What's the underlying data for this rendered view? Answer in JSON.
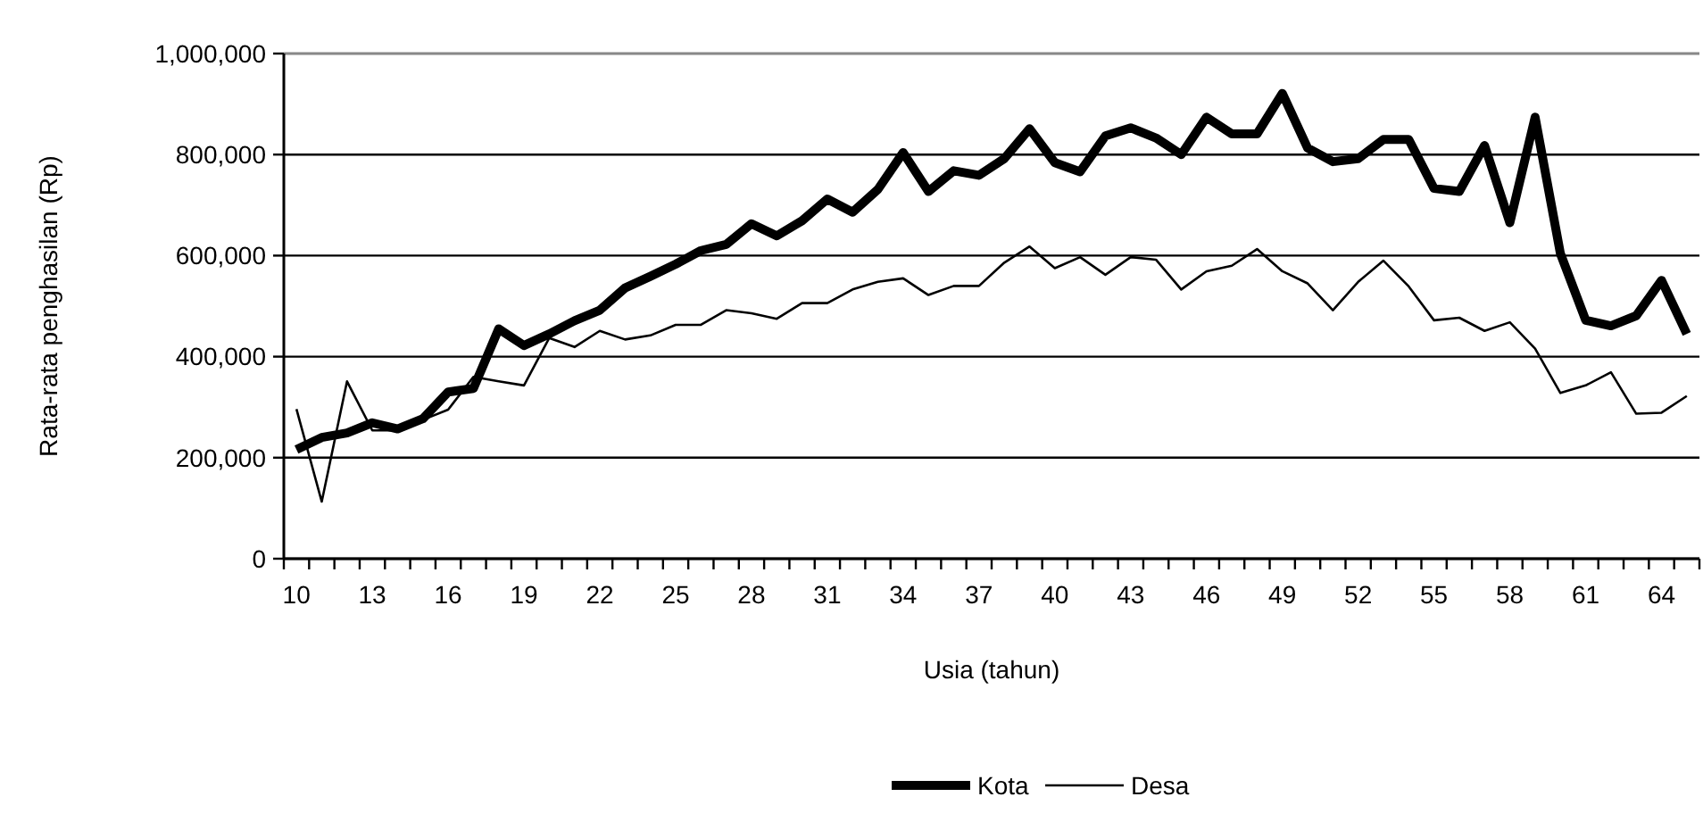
{
  "chart_data": {
    "type": "line",
    "xlabel": "Usia (tahun)",
    "ylabel": "Rata-rata penghasilan (Rp)",
    "categories": [
      "10",
      null,
      null,
      "13",
      null,
      null,
      "16",
      null,
      null,
      "19",
      null,
      null,
      "22",
      null,
      null,
      "25",
      null,
      null,
      "28",
      null,
      null,
      "31",
      null,
      null,
      "34",
      null,
      null,
      "37",
      null,
      null,
      "40",
      null,
      null,
      "43",
      null,
      null,
      "46",
      null,
      null,
      "49",
      null,
      null,
      "52",
      null,
      null,
      "55",
      null,
      null,
      "58",
      null,
      null,
      "61",
      null,
      null,
      "64",
      null
    ],
    "series": [
      {
        "name": "Kota",
        "color": "#000000",
        "values": [
          216000,
          240000,
          249000,
          269000,
          257000,
          277000,
          330000,
          337000,
          455000,
          422000,
          445000,
          471000,
          492000,
          536000,
          559000,
          583000,
          610000,
          622000,
          663000,
          639000,
          669000,
          712000,
          686000,
          731000,
          804000,
          727000,
          768000,
          759000,
          792000,
          851000,
          784000,
          766000,
          837000,
          853000,
          833000,
          800000,
          874000,
          841000,
          841000,
          921000,
          813000,
          786000,
          792000,
          830000,
          830000,
          733000,
          727000,
          818000,
          665000,
          874000,
          604000,
          472000,
          461000,
          481000,
          551000,
          445000
        ]
      },
      {
        "name": "Desa",
        "color": "#000000",
        "values": [
          296000,
          113000,
          351000,
          254000,
          254000,
          275000,
          295000,
          360000,
          351000,
          343000,
          437000,
          419000,
          451000,
          434000,
          442000,
          463000,
          463000,
          492000,
          486000,
          475000,
          506000,
          506000,
          533000,
          548000,
          555000,
          522000,
          540000,
          540000,
          586000,
          618000,
          575000,
          597000,
          562000,
          597000,
          592000,
          533000,
          569000,
          580000,
          613000,
          569000,
          545000,
          492000,
          548000,
          590000,
          539000,
          472000,
          477000,
          451000,
          468000,
          416000,
          328000,
          343000,
          369000,
          287000,
          289000,
          322000
        ]
      }
    ],
    "ylim": [
      0,
      1000000
    ],
    "yticks": [
      {
        "value": 0,
        "label": "0"
      },
      {
        "value": 200000,
        "label": "200,000"
      },
      {
        "value": 400000,
        "label": "400,000"
      },
      {
        "value": 600000,
        "label": "600,000"
      },
      {
        "value": 800000,
        "label": "800,000"
      },
      {
        "value": 1000000,
        "label": "1,000,000"
      }
    ],
    "grid": "y",
    "legend": "bottom",
    "marker": "none",
    "line_style": "solid"
  }
}
